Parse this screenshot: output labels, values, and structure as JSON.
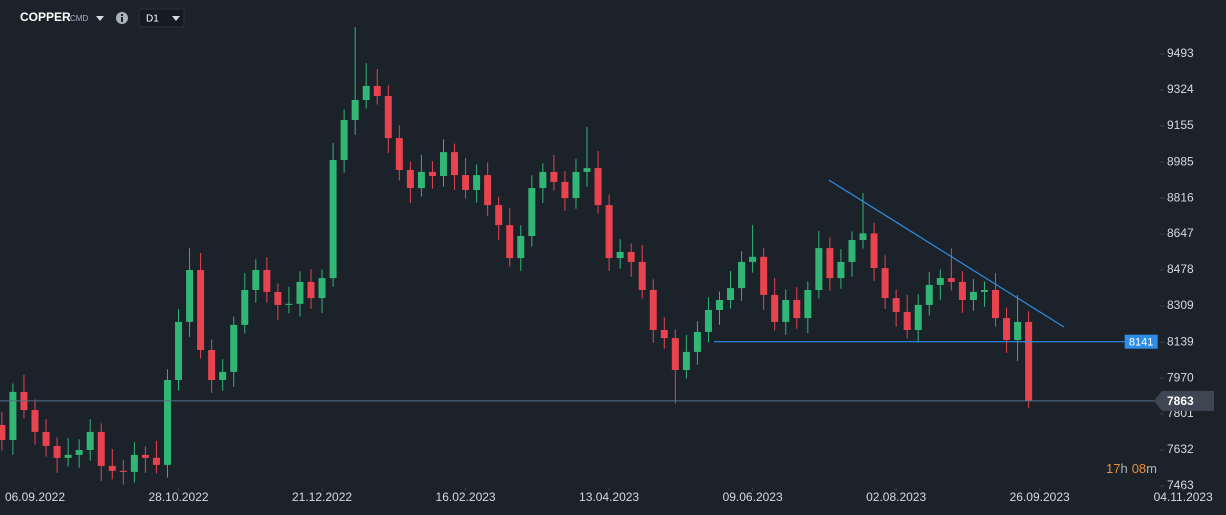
{
  "chart_data": {
    "type": "candlestick",
    "symbol": "COPPER",
    "symbol_type": "CMD",
    "timeframe": "D1",
    "up_color": "#31b675",
    "down_color": "#e8434f",
    "open": [
      7750,
      7679,
      7905,
      7820,
      7717,
      7651,
      7595,
      7609,
      7632,
      7717,
      7557,
      7534,
      7529,
      7609,
      7595,
      7562,
      7961,
      8234,
      8478,
      8102,
      7961,
      7999,
      8220,
      8384,
      8478,
      8375,
      8314,
      8319,
      8422,
      8346,
      8440,
      8995,
      9183,
      9277,
      9343,
      9296,
      9098,
      8948,
      8863,
      8939,
      8920,
      9032,
      8924,
      8854,
      8924,
      8783,
      8689,
      8534,
      8638,
      8863,
      8939,
      8892,
      8816,
      8939,
      8957,
      8783,
      8534,
      8563,
      8516,
      8384,
      8196,
      8158,
      8008,
      8093,
      8187,
      8290,
      8337,
      8393,
      8516,
      8540,
      8361,
      8234,
      8337,
      8252,
      8384,
      8581,
      8440,
      8516,
      8619,
      8650,
      8487,
      8346,
      8281,
      8196,
      8314,
      8408,
      8440,
      8422,
      8337,
      8375,
      8384,
      8252,
      8149,
      8234
    ],
    "high": [
      7810,
      7945,
      7985,
      7870,
      7777,
      7691,
      7689,
      7682,
      7777,
      7757,
      7637,
      7584,
      7669,
      7649,
      7675,
      8011,
      8294,
      8580,
      8558,
      8152,
      8059,
      8260,
      8464,
      8528,
      8538,
      8415,
      8399,
      8472,
      8482,
      8480,
      9075,
      9233,
      9620,
      9450,
      9423,
      9346,
      9158,
      8988,
      9019,
      8989,
      9092,
      9072,
      9004,
      8974,
      8984,
      8823,
      8769,
      8688,
      8923,
      8979,
      9019,
      8942,
      8999,
      9150,
      9037,
      8833,
      8623,
      8603,
      8596,
      8434,
      8256,
      8198,
      8173,
      8237,
      8350,
      8377,
      8473,
      8566,
      8690,
      8580,
      8441,
      8387,
      8397,
      8424,
      8661,
      8631,
      8576,
      8659,
      8840,
      8700,
      8547,
      8386,
      8361,
      8364,
      8468,
      8480,
      8580,
      8472,
      8435,
      8424,
      8464,
      8302,
      8360,
      8284
    ],
    "low": [
      7629,
      7609,
      7780,
      7657,
      7601,
      7525,
      7555,
      7549,
      7582,
      7487,
      7494,
      7469,
      7479,
      7525,
      7522,
      7502,
      7911,
      8164,
      8062,
      7901,
      7911,
      7929,
      8180,
      8324,
      8325,
      8244,
      8274,
      8259,
      8296,
      8276,
      8400,
      8935,
      9113,
      9237,
      9256,
      9028,
      8898,
      8793,
      8823,
      8860,
      8870,
      8854,
      8814,
      8794,
      8733,
      8619,
      8494,
      8474,
      8588,
      8793,
      8852,
      8756,
      8766,
      8869,
      8743,
      8474,
      8484,
      8446,
      8344,
      8136,
      8108,
      7850,
      7968,
      8033,
      8137,
      8220,
      8297,
      8333,
      8466,
      8291,
      8194,
      8174,
      8202,
      8182,
      8344,
      8380,
      8390,
      8446,
      8579,
      8427,
      8296,
      8211,
      8156,
      8136,
      8264,
      8338,
      8382,
      8277,
      8287,
      8305,
      8212,
      8089,
      8050,
      7830
    ],
    "close": [
      7679,
      7905,
      7820,
      7717,
      7651,
      7595,
      7609,
      7632,
      7717,
      7557,
      7534,
      7529,
      7609,
      7595,
      7562,
      7961,
      8234,
      8478,
      8102,
      7961,
      7999,
      8220,
      8384,
      8478,
      8375,
      8314,
      8319,
      8422,
      8346,
      8440,
      8995,
      9183,
      9277,
      9343,
      9296,
      9098,
      8948,
      8863,
      8939,
      8920,
      9032,
      8924,
      8854,
      8924,
      8783,
      8689,
      8534,
      8638,
      8863,
      8939,
      8892,
      8816,
      8939,
      8957,
      8783,
      8534,
      8563,
      8516,
      8384,
      8196,
      8158,
      8008,
      8093,
      8187,
      8290,
      8337,
      8393,
      8516,
      8540,
      8361,
      8234,
      8337,
      8252,
      8384,
      8581,
      8440,
      8516,
      8619,
      8650,
      8487,
      8346,
      8281,
      8196,
      8314,
      8408,
      8440,
      8422,
      8337,
      8375,
      8384,
      8252,
      8149,
      8234,
      7863
    ],
    "xlim": [
      -0.17,
      104.9
    ],
    "xticks": [
      {
        "value": 3,
        "label": "06.09.2022"
      },
      {
        "value": 16,
        "label": "28.10.2022"
      },
      {
        "value": 29,
        "label": "21.12.2022"
      },
      {
        "value": 42,
        "label": "16.02.2023"
      },
      {
        "value": 55,
        "label": "13.04.2023"
      },
      {
        "value": 68,
        "label": "09.06.2023"
      },
      {
        "value": 81,
        "label": "02.08.2023"
      },
      {
        "value": 94,
        "label": "26.09.2023"
      },
      {
        "value": 107,
        "label": "04.11.2023"
      }
    ],
    "ylim": [
      7444,
      9747
    ],
    "yticks": [
      9493,
      9324,
      9155,
      8985,
      8816,
      8647,
      8478,
      8309,
      8139,
      7970,
      7801,
      7632,
      7463
    ],
    "price_line": {
      "value": 7863,
      "color": "#55708c"
    },
    "annotations": [
      {
        "type": "trendline",
        "x": [
          74.9,
          96.2
        ],
        "y": [
          8901,
          8210
        ],
        "color": "#2e8de6"
      },
      {
        "type": "hline",
        "x": [
          64.5,
          101.7
        ],
        "value": 8141,
        "color": "#2e8de6"
      }
    ],
    "countdown": [
      "17",
      "h",
      "08",
      "m"
    ]
  }
}
